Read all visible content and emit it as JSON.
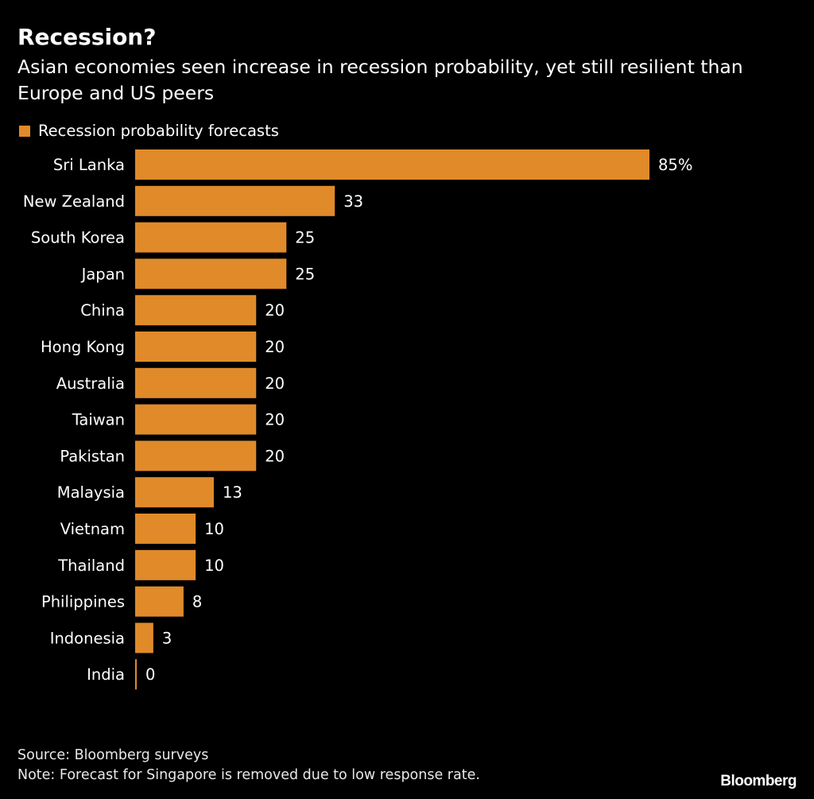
{
  "title": "Recession?",
  "subtitle": "Asian economies seen increase in recession probability, yet still resilient than Europe and US peers",
  "footer": {
    "source": "Source: Bloomberg surveys",
    "note": "Note: Forecast for Singapore is removed due to low response rate."
  },
  "brand": "Bloomberg",
  "colors": {
    "bar": "#E08A2A",
    "background": "#000000",
    "text": "#FFFFFF"
  },
  "chart_data": {
    "type": "bar",
    "orientation": "horizontal",
    "title": "Recession?",
    "xlabel": "",
    "ylabel": "",
    "legend": "top-left",
    "grid": false,
    "xlim": [
      0,
      85
    ],
    "categories": [
      "Sri Lanka",
      "New Zealand",
      "South Korea",
      "Japan",
      "China",
      "Hong Kong",
      "Australia",
      "Taiwan",
      "Pakistan",
      "Malaysia",
      "Vietnam",
      "Thailand",
      "Philippines",
      "Indonesia",
      "India"
    ],
    "series": [
      {
        "name": "Recession probability forecasts",
        "values": [
          85,
          33,
          25,
          25,
          20,
          20,
          20,
          20,
          20,
          13,
          10,
          10,
          8,
          3,
          0
        ]
      }
    ],
    "data_labels": [
      "85%",
      "33",
      "25",
      "25",
      "20",
      "20",
      "20",
      "20",
      "20",
      "13",
      "10",
      "10",
      "8",
      "3",
      "0"
    ]
  }
}
